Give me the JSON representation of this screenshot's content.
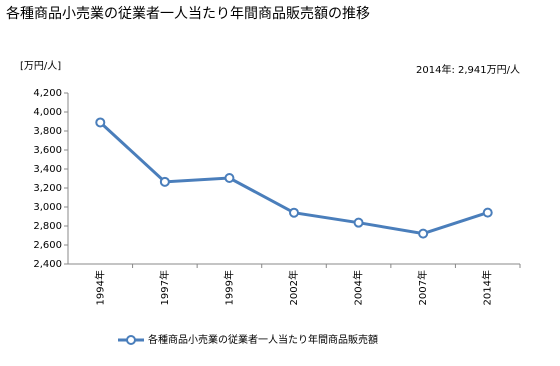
{
  "chart_data": {
    "type": "line",
    "title": "各種商品小売業の従業者一人当たり年間商品販売額の推移",
    "y_axis_label": "[万円/人]",
    "annotation": "2014年: 2,941万円/人",
    "categories": [
      "1994年",
      "1997年",
      "1999年",
      "2002年",
      "2004年",
      "2007年",
      "2014年"
    ],
    "series": [
      {
        "name": "各種商品小売業の従業者一人当たり年間商品販売額",
        "color": "#4a7ebb",
        "values": [
          3890,
          3265,
          3305,
          2940,
          2835,
          2720,
          2941
        ]
      }
    ],
    "ylim": [
      2400,
      4200
    ],
    "yticks": [
      {
        "value": 2400,
        "label": "2,400"
      },
      {
        "value": 2600,
        "label": "2,600"
      },
      {
        "value": 2800,
        "label": "2,800"
      },
      {
        "value": 3000,
        "label": "3,000"
      },
      {
        "value": 3200,
        "label": "3,200"
      },
      {
        "value": 3400,
        "label": "3,400"
      },
      {
        "value": 3600,
        "label": "3,600"
      },
      {
        "value": 3800,
        "label": "3,800"
      },
      {
        "value": 4000,
        "label": "4,000"
      },
      {
        "value": 4200,
        "label": "4,200"
      }
    ]
  }
}
